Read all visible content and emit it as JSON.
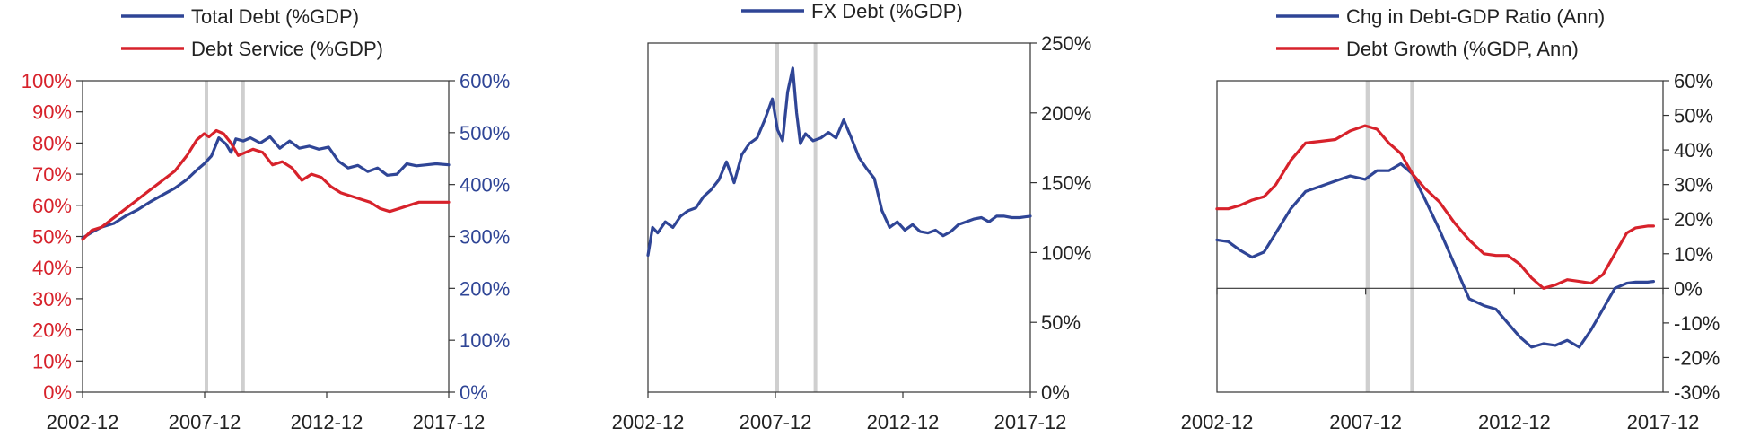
{
  "colors": {
    "blue": "#2f4596",
    "red": "#d7222b",
    "gray_band": "#cfcfcf",
    "axis": "#333333",
    "text": "#222222"
  },
  "chart_data": [
    {
      "type": "line",
      "legend": [
        {
          "label": "Total Debt (%GDP)",
          "color": "#2f4596"
        },
        {
          "label": "Debt Service (%GDP)",
          "color": "#d7222b"
        }
      ],
      "x_ticks": [
        "2002-12",
        "2007-12",
        "2012-12",
        "2017-12"
      ],
      "xlim": [
        2002.92,
        2017.92
      ],
      "shaded_periods": [
        [
          2007.92,
          2008.05
        ],
        [
          2009.42,
          2009.55
        ]
      ],
      "left_axis": {
        "ylim": [
          0,
          100
        ],
        "ticks": [
          "0%",
          "10%",
          "20%",
          "30%",
          "40%",
          "50%",
          "60%",
          "70%",
          "80%",
          "90%",
          "100%"
        ],
        "color": "#d7222b"
      },
      "right_axis": {
        "ylim": [
          0,
          600
        ],
        "ticks": [
          "0%",
          "100%",
          "200%",
          "300%",
          "400%",
          "500%",
          "600%"
        ],
        "color": "#2f4596"
      },
      "grid": false,
      "series": [
        {
          "name": "Total Debt (%GDP)",
          "axis": "right",
          "color": "#2f4596",
          "x": [
            2002.92,
            2003.3,
            2003.7,
            2004.2,
            2004.7,
            2005.2,
            2005.7,
            2006.2,
            2006.7,
            2007.2,
            2007.6,
            2007.9,
            2008.2,
            2008.5,
            2008.8,
            2009.0,
            2009.2,
            2009.5,
            2009.8,
            2010.2,
            2010.6,
            2011.0,
            2011.4,
            2011.8,
            2012.2,
            2012.6,
            2013.0,
            2013.4,
            2013.8,
            2014.2,
            2014.6,
            2015.0,
            2015.4,
            2015.8,
            2016.2,
            2016.6,
            2017.0,
            2017.4,
            2017.92
          ],
          "y": [
            297,
            308,
            318,
            325,
            340,
            352,
            367,
            380,
            393,
            410,
            428,
            440,
            455,
            490,
            478,
            462,
            488,
            484,
            490,
            480,
            492,
            470,
            484,
            470,
            474,
            468,
            472,
            445,
            432,
            437,
            425,
            432,
            418,
            420,
            440,
            436,
            438,
            440,
            438
          ]
        },
        {
          "name": "Debt Service (%GDP)",
          "axis": "left",
          "color": "#d7222b",
          "x": [
            2002.92,
            2003.3,
            2003.7,
            2004.2,
            2004.7,
            2005.2,
            2005.7,
            2006.2,
            2006.7,
            2007.2,
            2007.6,
            2007.9,
            2008.1,
            2008.4,
            2008.7,
            2009.0,
            2009.3,
            2009.6,
            2009.9,
            2010.3,
            2010.7,
            2011.1,
            2011.5,
            2011.9,
            2012.3,
            2012.7,
            2013.1,
            2013.5,
            2013.9,
            2014.3,
            2014.7,
            2015.1,
            2015.5,
            2015.9,
            2016.3,
            2016.7,
            2017.1,
            2017.5,
            2017.92
          ],
          "y": [
            49,
            52,
            53,
            56,
            59,
            62,
            65,
            68,
            71,
            76,
            81,
            83,
            82,
            84,
            83,
            80,
            76,
            77,
            78,
            77,
            73,
            74,
            72,
            68,
            70,
            69,
            66,
            64,
            63,
            62,
            61,
            59,
            58,
            59,
            60,
            61,
            61,
            61,
            61
          ]
        }
      ]
    },
    {
      "type": "line",
      "legend": [
        {
          "label": "FX Debt (%GDP)",
          "color": "#2f4596"
        }
      ],
      "x_ticks": [
        "2002-12",
        "2007-12",
        "2012-12",
        "2017-12"
      ],
      "xlim": [
        2002.92,
        2017.92
      ],
      "shaded_periods": [
        [
          2007.92,
          2008.05
        ],
        [
          2009.42,
          2009.55
        ]
      ],
      "right_axis": {
        "ylim": [
          0,
          250
        ],
        "ticks": [
          "0%",
          "50%",
          "100%",
          "150%",
          "200%",
          "250%"
        ],
        "color": "#222222"
      },
      "grid": false,
      "series": [
        {
          "name": "FX Debt (%GDP)",
          "axis": "right",
          "color": "#2f4596",
          "x": [
            2002.92,
            2003.1,
            2003.3,
            2003.6,
            2003.9,
            2004.2,
            2004.5,
            2004.8,
            2005.1,
            2005.4,
            2005.7,
            2006.0,
            2006.3,
            2006.6,
            2006.9,
            2007.2,
            2007.5,
            2007.8,
            2008.0,
            2008.2,
            2008.4,
            2008.6,
            2008.75,
            2008.9,
            2009.1,
            2009.4,
            2009.7,
            2010.0,
            2010.3,
            2010.6,
            2010.9,
            2011.2,
            2011.5,
            2011.8,
            2012.1,
            2012.4,
            2012.7,
            2013.0,
            2013.3,
            2013.6,
            2013.9,
            2014.2,
            2014.5,
            2014.8,
            2015.1,
            2015.4,
            2015.7,
            2016.0,
            2016.3,
            2016.6,
            2016.9,
            2017.2,
            2017.5,
            2017.92
          ],
          "y": [
            98,
            118,
            114,
            122,
            118,
            126,
            130,
            132,
            140,
            145,
            152,
            165,
            150,
            170,
            178,
            182,
            195,
            210,
            188,
            180,
            215,
            232,
            200,
            178,
            185,
            180,
            182,
            186,
            182,
            195,
            182,
            168,
            160,
            153,
            130,
            118,
            122,
            116,
            120,
            115,
            114,
            116,
            112,
            115,
            120,
            122,
            124,
            125,
            122,
            126,
            126,
            125,
            125,
            126
          ]
        }
      ]
    },
    {
      "type": "line",
      "legend": [
        {
          "label": "Chg in Debt-GDP Ratio (Ann)",
          "color": "#2f4596"
        },
        {
          "label": "Debt Growth (%GDP, Ann)",
          "color": "#d7222b"
        }
      ],
      "x_ticks": [
        "2002-12",
        "2007-12",
        "2012-12",
        "2017-12"
      ],
      "xlim": [
        2002.92,
        2017.92
      ],
      "shaded_periods": [
        [
          2007.92,
          2008.05
        ],
        [
          2009.42,
          2009.55
        ]
      ],
      "right_axis": {
        "ylim": [
          -30,
          60
        ],
        "ticks": [
          "-30%",
          "-20%",
          "-10%",
          "0%",
          "10%",
          "20%",
          "30%",
          "40%",
          "50%",
          "60%"
        ],
        "color": "#222222"
      },
      "zero_line": true,
      "grid": false,
      "series": [
        {
          "name": "Chg in Debt-GDP Ratio (Ann)",
          "axis": "right",
          "color": "#2f4596",
          "x": [
            2002.92,
            2003.3,
            2003.7,
            2004.1,
            2004.5,
            2004.9,
            2005.4,
            2005.9,
            2006.4,
            2006.9,
            2007.4,
            2007.9,
            2008.3,
            2008.7,
            2009.1,
            2009.5,
            2009.9,
            2010.4,
            2010.9,
            2011.4,
            2011.9,
            2012.3,
            2012.7,
            2013.1,
            2013.5,
            2013.9,
            2014.3,
            2014.7,
            2015.1,
            2015.5,
            2015.9,
            2016.3,
            2016.7,
            2017.0,
            2017.4,
            2017.6
          ],
          "y": [
            14,
            13.5,
            11,
            9,
            10.5,
            16,
            23,
            28,
            29.5,
            31,
            32.5,
            31.5,
            34,
            34,
            36,
            33,
            26,
            17,
            7,
            -3,
            -5,
            -6,
            -10,
            -14,
            -17,
            -16,
            -16.5,
            -15,
            -17,
            -12,
            -6,
            0,
            1.5,
            1.8,
            1.8,
            2
          ]
        },
        {
          "name": "Debt Growth (%GDP, Ann)",
          "axis": "right",
          "color": "#d7222b",
          "x": [
            2002.92,
            2003.3,
            2003.7,
            2004.1,
            2004.5,
            2004.9,
            2005.4,
            2005.9,
            2006.4,
            2006.9,
            2007.4,
            2007.9,
            2008.3,
            2008.7,
            2009.1,
            2009.5,
            2009.9,
            2010.4,
            2010.9,
            2011.4,
            2011.9,
            2012.3,
            2012.7,
            2013.1,
            2013.5,
            2013.9,
            2014.3,
            2014.7,
            2015.1,
            2015.5,
            2015.9,
            2016.3,
            2016.7,
            2017.0,
            2017.4,
            2017.6
          ],
          "y": [
            23,
            23,
            24,
            25.5,
            26.5,
            30,
            37,
            42,
            42.5,
            43,
            45.5,
            47,
            46,
            42,
            39,
            33,
            29,
            25,
            19,
            14,
            10,
            9.5,
            9.5,
            7,
            3,
            0,
            1,
            2.5,
            2,
            1.5,
            4,
            10,
            16,
            17.5,
            18,
            18
          ]
        }
      ]
    }
  ]
}
